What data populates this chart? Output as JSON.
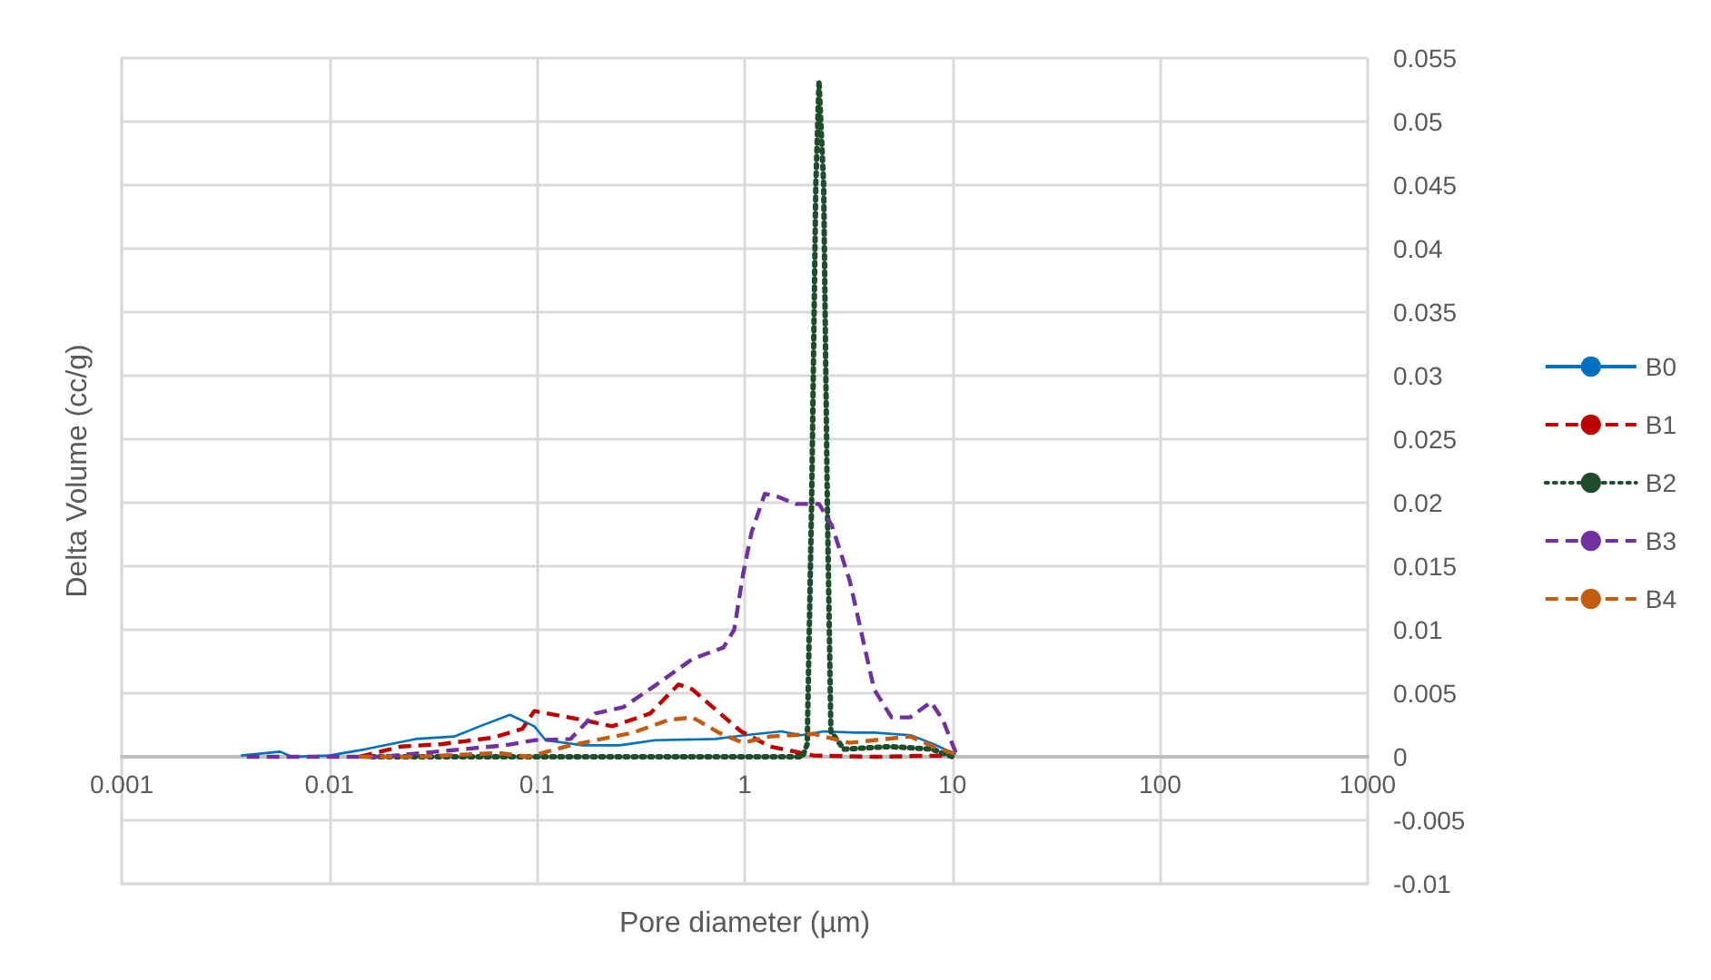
{
  "chart_data": {
    "type": "line",
    "xlabel": "Pore diameter (µm)",
    "ylabel": "Delta Volume (cc/g)",
    "log": "x",
    "grid": true,
    "legend": "right",
    "marker": "none",
    "xlim": [
      0.001,
      1000
    ],
    "xticks": [
      0.001,
      0.01,
      0.1,
      1,
      10,
      100,
      1000
    ],
    "ylim": [
      -0.01,
      0.055
    ],
    "yticks": [
      -0.01,
      -0.005,
      0,
      0.005,
      0.01,
      0.015,
      0.02,
      0.025,
      0.03,
      0.035,
      0.04,
      0.045,
      0.05,
      0.055
    ],
    "series": [
      {
        "name": "B0",
        "color": "#0070c0",
        "line_style": "solid",
        "x": [
          0.00375,
          0.0058,
          0.0066,
          0.01,
          0.015,
          0.026,
          0.04,
          0.053,
          0.074,
          0.097,
          0.11,
          0.166,
          0.25,
          0.37,
          0.72,
          1.0,
          1.5,
          1.87,
          2.4,
          3.4,
          4.2,
          6.3,
          8.1,
          10.4
        ],
        "values": [
          0.0001,
          0.0004,
          0,
          0.0001,
          0.0006,
          0.0014,
          0.0016,
          0.0024,
          0.0033,
          0.0024,
          0.0013,
          0.0009,
          0.0009,
          0.0013,
          0.0014,
          0.0017,
          0.002,
          0.0017,
          0.002,
          0.0019,
          0.0019,
          0.0017,
          0.001,
          0.0002
        ]
      },
      {
        "name": "B1",
        "color": "#c00000",
        "line_style": "dashed",
        "x": [
          0.014,
          0.022,
          0.035,
          0.061,
          0.085,
          0.097,
          0.166,
          0.23,
          0.35,
          0.48,
          0.56,
          0.68,
          0.96,
          1.33,
          2.15,
          4.2,
          9.4
        ],
        "values": [
          0,
          0.0008,
          0.001,
          0.0015,
          0.0022,
          0.0036,
          0.0029,
          0.0024,
          0.0034,
          0.0057,
          0.0053,
          0.0041,
          0.002,
          0.0008,
          0.0001,
          0,
          0.0001
        ]
      },
      {
        "name": "B2",
        "color": "#1e4d2b",
        "line_style": "dotted",
        "x": [
          0.016,
          1.9,
          2.0,
          2.1,
          2.2,
          2.28,
          2.4,
          2.5,
          2.6,
          3,
          5,
          8,
          10
        ],
        "values": [
          0,
          0,
          0.001,
          0.02,
          0.045,
          0.0532,
          0.045,
          0.02,
          0.002,
          0.0006,
          0.0008,
          0.0006,
          0
        ]
      },
      {
        "name": "B3",
        "color": "#7030a0",
        "line_style": "dashed",
        "x": [
          0.004,
          0.0081,
          0.018,
          0.038,
          0.07,
          0.097,
          0.145,
          0.19,
          0.26,
          0.37,
          0.56,
          0.79,
          0.89,
          0.98,
          1.08,
          1.25,
          1.43,
          1.76,
          2.28,
          2.63,
          3.2,
          4.2,
          5.1,
          6.25,
          7.9,
          9.0,
          10.4
        ],
        "values": [
          0,
          0,
          0,
          0.0005,
          0.0009,
          0.0013,
          0.0014,
          0.0034,
          0.0039,
          0.0056,
          0.0077,
          0.0086,
          0.01,
          0.0143,
          0.0177,
          0.0207,
          0.0205,
          0.0199,
          0.0199,
          0.0182,
          0.0139,
          0.0053,
          0.0031,
          0.0031,
          0.0043,
          0.0029,
          0.0003
        ]
      },
      {
        "name": "B4",
        "color": "#c55a11",
        "line_style": "dashed",
        "x": [
          0.014,
          0.026,
          0.065,
          0.091,
          0.145,
          0.29,
          0.43,
          0.56,
          0.75,
          0.98,
          1.33,
          2.15,
          3.2,
          6.25,
          8.1,
          10.4
        ],
        "values": [
          0,
          0,
          0.0003,
          0,
          0.0009,
          0.0019,
          0.0029,
          0.0031,
          0.0019,
          0.0011,
          0.0016,
          0.0018,
          0.0011,
          0.0016,
          0.0008,
          0.0002
        ]
      }
    ]
  }
}
